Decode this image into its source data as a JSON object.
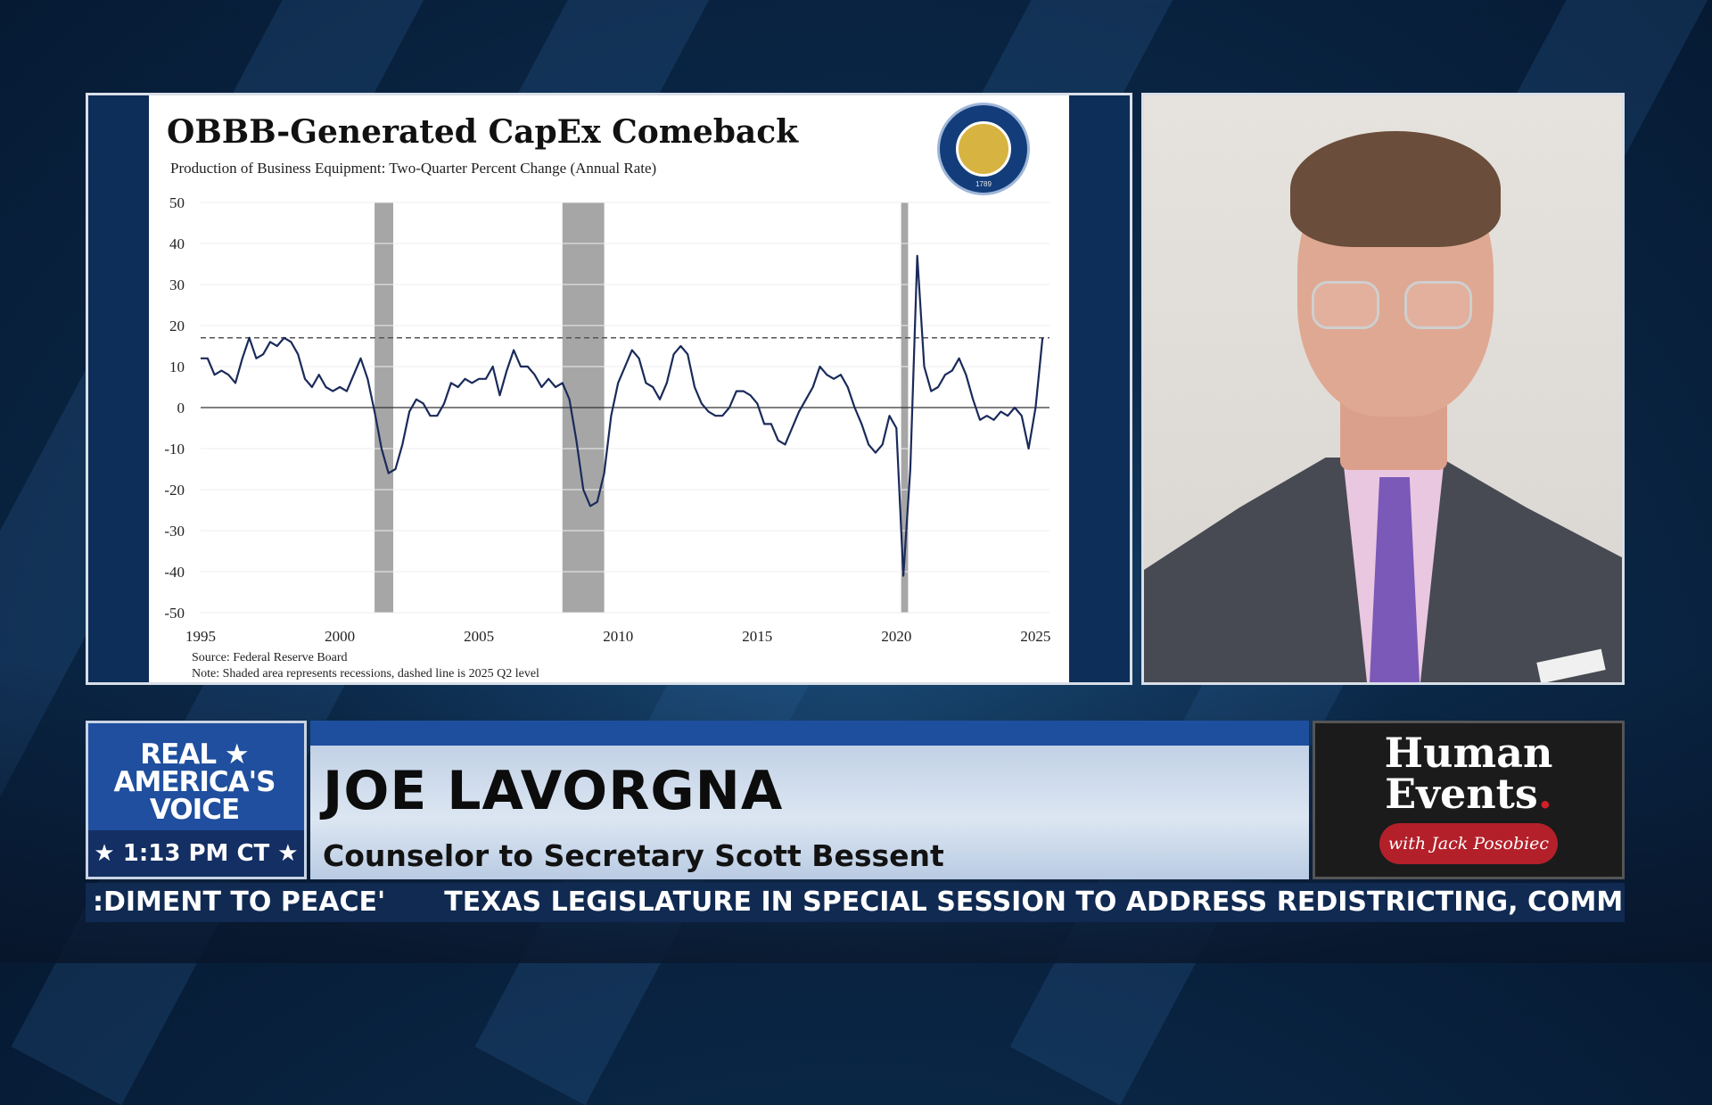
{
  "chart": {
    "title": "OBBB-Generated CapEx Comeback",
    "subtitle": "Production of Business Equipment: Two-Quarter Percent Change (Annual Rate)",
    "source": "Source: Federal Reserve Board",
    "note": "Note: Shaded area represents recessions, dashed line is 2025 Q2 level",
    "seal_text": "1789",
    "colors": {
      "line": "#1a2a5a",
      "recession": "#a6a6a6",
      "dashed": "#555555"
    }
  },
  "chart_data": {
    "type": "line",
    "title": "OBBB-Generated CapEx Comeback",
    "subtitle": "Production of Business Equipment: Two-Quarter Percent Change (Annual Rate)",
    "xlim": [
      1995,
      2025.5
    ],
    "ylim": [
      -50,
      50
    ],
    "yticks": [
      50,
      40,
      30,
      20,
      10,
      0,
      -10,
      -20,
      -30,
      -40,
      -50
    ],
    "xticks": [
      1995,
      2000,
      2005,
      2010,
      2015,
      2020,
      2025
    ],
    "recessions": [
      [
        2001.25,
        2001.92
      ],
      [
        2008.0,
        2009.5
      ],
      [
        2020.17,
        2020.42
      ]
    ],
    "reference_level": 17,
    "series": [
      {
        "values": [
          [
            1995.0,
            12
          ],
          [
            1995.25,
            12
          ],
          [
            1995.5,
            8
          ],
          [
            1995.75,
            9
          ],
          [
            1996.0,
            8
          ],
          [
            1996.25,
            6
          ],
          [
            1996.5,
            12
          ],
          [
            1996.75,
            17
          ],
          [
            1997.0,
            12
          ],
          [
            1997.25,
            13
          ],
          [
            1997.5,
            16
          ],
          [
            1997.75,
            15
          ],
          [
            1998.0,
            17
          ],
          [
            1998.25,
            16
          ],
          [
            1998.5,
            13
          ],
          [
            1998.75,
            7
          ],
          [
            1999.0,
            5
          ],
          [
            1999.25,
            8
          ],
          [
            1999.5,
            5
          ],
          [
            1999.75,
            4
          ],
          [
            2000.0,
            5
          ],
          [
            2000.25,
            4
          ],
          [
            2000.5,
            8
          ],
          [
            2000.75,
            12
          ],
          [
            2001.0,
            7
          ],
          [
            2001.25,
            -1
          ],
          [
            2001.5,
            -10
          ],
          [
            2001.75,
            -16
          ],
          [
            2002.0,
            -15
          ],
          [
            2002.25,
            -9
          ],
          [
            2002.5,
            -1
          ],
          [
            2002.75,
            2
          ],
          [
            2003.0,
            1
          ],
          [
            2003.25,
            -2
          ],
          [
            2003.5,
            -2
          ],
          [
            2003.75,
            1
          ],
          [
            2004.0,
            6
          ],
          [
            2004.25,
            5
          ],
          [
            2004.5,
            7
          ],
          [
            2004.75,
            6
          ],
          [
            2005.0,
            7
          ],
          [
            2005.25,
            7
          ],
          [
            2005.5,
            10
          ],
          [
            2005.75,
            3
          ],
          [
            2006.0,
            9
          ],
          [
            2006.25,
            14
          ],
          [
            2006.5,
            10
          ],
          [
            2006.75,
            10
          ],
          [
            2007.0,
            8
          ],
          [
            2007.25,
            5
          ],
          [
            2007.5,
            7
          ],
          [
            2007.75,
            5
          ],
          [
            2008.0,
            6
          ],
          [
            2008.25,
            2
          ],
          [
            2008.5,
            -8
          ],
          [
            2008.75,
            -20
          ],
          [
            2009.0,
            -24
          ],
          [
            2009.25,
            -23
          ],
          [
            2009.5,
            -16
          ],
          [
            2009.75,
            -2
          ],
          [
            2010.0,
            6
          ],
          [
            2010.25,
            10
          ],
          [
            2010.5,
            14
          ],
          [
            2010.75,
            12
          ],
          [
            2011.0,
            6
          ],
          [
            2011.25,
            5
          ],
          [
            2011.5,
            2
          ],
          [
            2011.75,
            6
          ],
          [
            2012.0,
            13
          ],
          [
            2012.25,
            15
          ],
          [
            2012.5,
            13
          ],
          [
            2012.75,
            5
          ],
          [
            2013.0,
            1
          ],
          [
            2013.25,
            -1
          ],
          [
            2013.5,
            -2
          ],
          [
            2013.75,
            -2
          ],
          [
            2014.0,
            0
          ],
          [
            2014.25,
            4
          ],
          [
            2014.5,
            4
          ],
          [
            2014.75,
            3
          ],
          [
            2015.0,
            1
          ],
          [
            2015.25,
            -4
          ],
          [
            2015.5,
            -4
          ],
          [
            2015.75,
            -8
          ],
          [
            2016.0,
            -9
          ],
          [
            2016.25,
            -5
          ],
          [
            2016.5,
            -1
          ],
          [
            2016.75,
            2
          ],
          [
            2017.0,
            5
          ],
          [
            2017.25,
            10
          ],
          [
            2017.5,
            8
          ],
          [
            2017.75,
            7
          ],
          [
            2018.0,
            8
          ],
          [
            2018.25,
            5
          ],
          [
            2018.5,
            0
          ],
          [
            2018.75,
            -4
          ],
          [
            2019.0,
            -9
          ],
          [
            2019.25,
            -11
          ],
          [
            2019.5,
            -9
          ],
          [
            2019.75,
            -2
          ],
          [
            2020.0,
            -5
          ],
          [
            2020.25,
            -41
          ],
          [
            2020.5,
            -15
          ],
          [
            2020.75,
            37
          ],
          [
            2021.0,
            10
          ],
          [
            2021.25,
            4
          ],
          [
            2021.5,
            5
          ],
          [
            2021.75,
            8
          ],
          [
            2022.0,
            9
          ],
          [
            2022.25,
            12
          ],
          [
            2022.5,
            8
          ],
          [
            2022.75,
            2
          ],
          [
            2023.0,
            -3
          ],
          [
            2023.25,
            -2
          ],
          [
            2023.5,
            -3
          ],
          [
            2023.75,
            -1
          ],
          [
            2024.0,
            -2
          ],
          [
            2024.25,
            0
          ],
          [
            2024.5,
            -2
          ],
          [
            2024.75,
            -10
          ],
          [
            2025.0,
            0
          ],
          [
            2025.25,
            17
          ]
        ]
      }
    ]
  },
  "lower_third": {
    "brand": "REAL ★ AMERICA'S VOICE",
    "time": "★ 1:13 PM CT ★",
    "name": "JOE LAVORGNA",
    "title": "Counselor to Secretary Scott Bessent",
    "show_name_1": "Human",
    "show_name_2": "Events",
    "show_dot": ".",
    "show_host": "with Jack Posobiec"
  },
  "ticker": {
    "item_1": ":DIMENT TO PEACE'",
    "item_2": "TEXAS LEGISLATURE IN SPECIAL SESSION TO ADDRESS REDISTRICTING, COMMITTEE M"
  }
}
